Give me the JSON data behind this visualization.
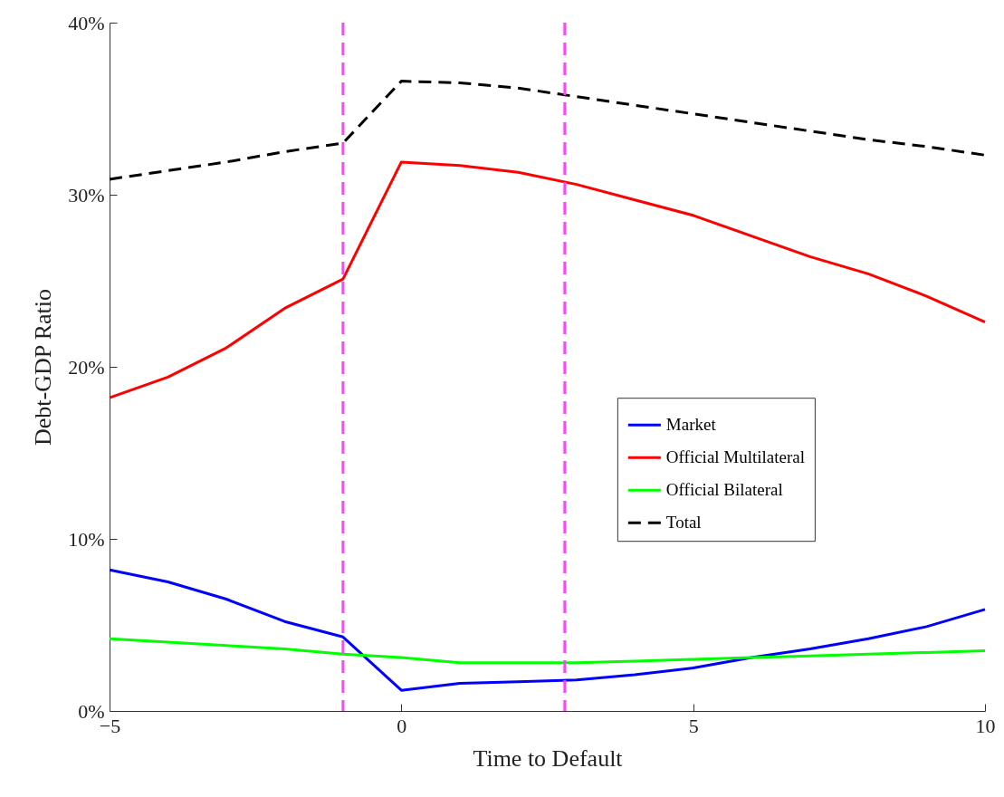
{
  "chart_data": {
    "type": "line",
    "xlabel": "Time to Default",
    "ylabel": "Debt-GDP Ratio",
    "x": [
      -5,
      -4,
      -3,
      -2,
      -1,
      0,
      1,
      2,
      3,
      4,
      5,
      6,
      7,
      8,
      9,
      10
    ],
    "series": [
      {
        "name": "Market",
        "color": "#0000ff",
        "values": [
          8.2,
          7.5,
          6.5,
          5.2,
          4.3,
          1.2,
          1.6,
          1.7,
          1.8,
          2.1,
          2.5,
          3.1,
          3.6,
          4.2,
          4.9,
          5.9
        ]
      },
      {
        "name": "Official Multilateral",
        "color": "#ff0000",
        "values": [
          18.2,
          19.4,
          21.1,
          23.4,
          25.1,
          31.9,
          31.7,
          31.3,
          30.6,
          29.7,
          28.8,
          27.6,
          26.4,
          25.4,
          24.1,
          22.6
        ]
      },
      {
        "name": "Official Bilateral",
        "color": "#00ff00",
        "values": [
          4.2,
          4.0,
          3.8,
          3.6,
          3.3,
          3.1,
          2.8,
          2.8,
          2.8,
          2.9,
          3.0,
          3.1,
          3.2,
          3.3,
          3.4,
          3.5
        ]
      },
      {
        "name": "Total",
        "color": "#000000",
        "line_style": "dashed",
        "values": [
          30.9,
          31.4,
          31.9,
          32.5,
          33.0,
          36.6,
          36.5,
          36.2,
          35.7,
          35.2,
          34.7,
          34.2,
          33.7,
          33.2,
          32.8,
          32.3
        ]
      }
    ],
    "xlim": [
      -5,
      10
    ],
    "xticks": [
      {
        "value": -5,
        "label": "−5"
      },
      0,
      5,
      10
    ],
    "ylim": [
      0,
      40
    ],
    "yticks": [
      {
        "value": 0,
        "label": "0%"
      },
      {
        "value": 10,
        "label": "10%"
      },
      {
        "value": 20,
        "label": "20%"
      },
      {
        "value": 30,
        "label": "30%"
      },
      {
        "value": 40,
        "label": "40%"
      }
    ],
    "ref_lines": [
      {
        "axis": "x",
        "value": -1,
        "color": "#ff44ff",
        "line_style": "dashed"
      },
      {
        "axis": "x",
        "value": 2.8,
        "color": "#ff44ff",
        "line_style": "dashed"
      }
    ],
    "grid": false,
    "legend": "right",
    "line_style": "solid"
  }
}
